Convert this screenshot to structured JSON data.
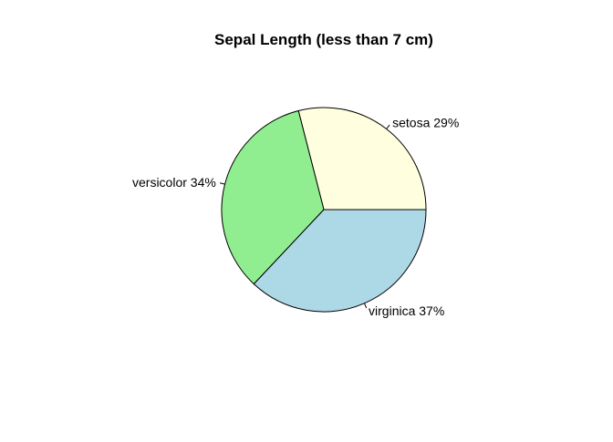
{
  "chart_data": {
    "type": "pie",
    "title": "Sepal Length (less than 7 cm)",
    "slices": [
      {
        "label": "setosa 29%",
        "category": "setosa",
        "value": 29,
        "color": "#FFFFE0"
      },
      {
        "label": "versicolor 34%",
        "category": "versicolor",
        "value": 34,
        "color": "#90EE90"
      },
      {
        "label": "virginica 37%",
        "category": "virginica",
        "value": 37,
        "color": "#ADD8E6"
      }
    ],
    "direction": "counterclockwise",
    "start_angle_deg": 0
  }
}
